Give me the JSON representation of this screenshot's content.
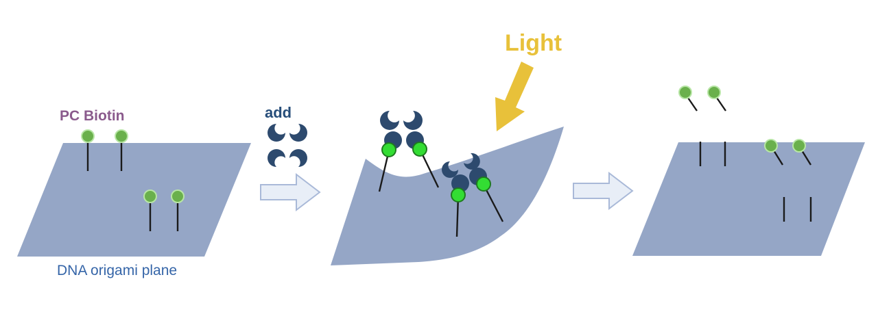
{
  "labels": {
    "pc_biotin": "PC Biotin",
    "plane": "DNA origami plane",
    "add": "add",
    "light": "Light"
  },
  "colors": {
    "plane": "#95a6c6",
    "streptavidin": "#2d4a6e",
    "biotin_dull": "#6ab04c",
    "biotin_bright": "#33dd33",
    "arrow_fill": "#e8eef7",
    "arrow_stroke": "#a9b9d8",
    "light_arrow": "#e8c13a",
    "pc_biotin_text": "#8a5a8c",
    "plane_text": "#3565a8",
    "add_text": "#274e7a"
  },
  "steps": [
    {
      "stage": "before",
      "description": "four PC-biotin linkers on flat plane"
    },
    {
      "stage": "binding",
      "description": "streptavidin tetramers bind biotin, plane bends"
    },
    {
      "stage": "after_light",
      "description": "biotin cleaved from linkers"
    }
  ]
}
